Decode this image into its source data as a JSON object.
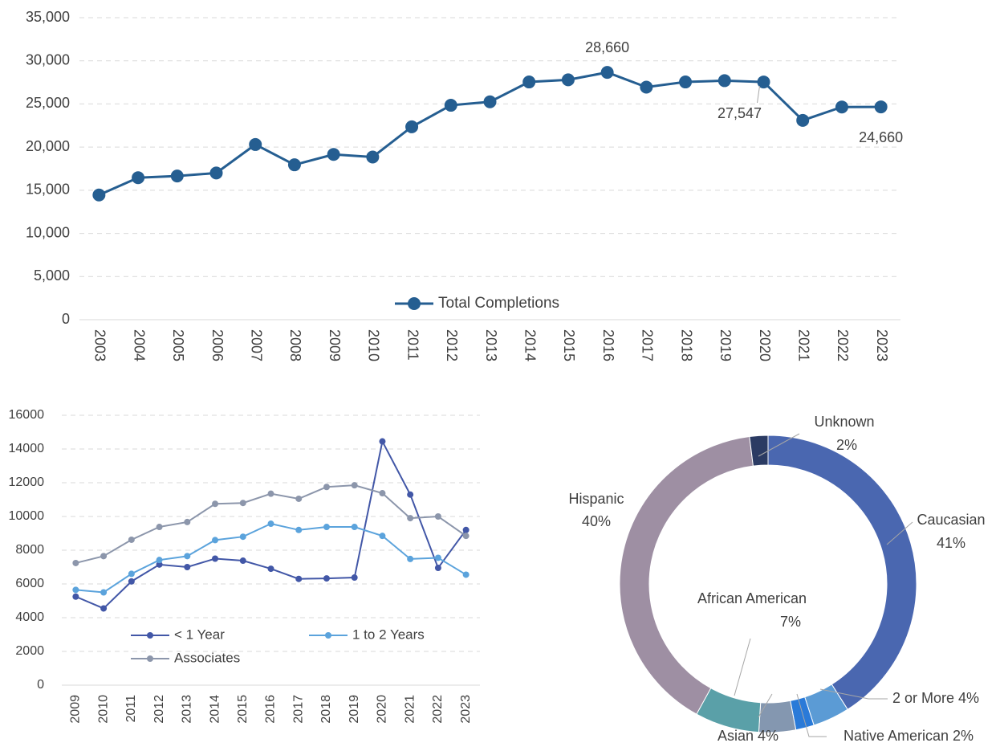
{
  "chart_data": [
    {
      "type": "line",
      "categories": [
        "2003",
        "2004",
        "2005",
        "2006",
        "2007",
        "2008",
        "2009",
        "2010",
        "2011",
        "2012",
        "2013",
        "2014",
        "2015",
        "2016",
        "2017",
        "2018",
        "2019",
        "2020",
        "2021",
        "2022",
        "2023"
      ],
      "series": [
        {
          "name": "Total Completions",
          "color": "#255e91",
          "values": [
            14450,
            16450,
            16650,
            17000,
            20300,
            17950,
            19150,
            18850,
            22350,
            24850,
            25250,
            27550,
            27800,
            28660,
            26950,
            27550,
            27700,
            27547,
            23100,
            24650,
            24660
          ],
          "value_labels": [
            null,
            null,
            null,
            null,
            null,
            null,
            null,
            null,
            null,
            null,
            null,
            null,
            null,
            "28,660",
            null,
            null,
            null,
            "27,547",
            null,
            null,
            "24,660"
          ]
        }
      ],
      "ylim": [
        0,
        35000
      ],
      "yticks": [
        0,
        {
          "value": 5000,
          "label": "5,000"
        },
        {
          "value": 10000,
          "label": "10,000"
        },
        {
          "value": 15000,
          "label": "15,000"
        },
        {
          "value": 20000,
          "label": "20,000"
        },
        {
          "value": 25000,
          "label": "25,000"
        },
        {
          "value": 30000,
          "label": "30,000"
        },
        {
          "value": 35000,
          "label": "35,000"
        }
      ],
      "grid": true,
      "legend": "bottom"
    },
    {
      "type": "line",
      "categories": [
        "2009",
        "2010",
        "2011",
        "2012",
        "2013",
        "2014",
        "2015",
        "2016",
        "2017",
        "2018",
        "2019",
        "2020",
        "2021",
        "2022",
        "2023"
      ],
      "series": [
        {
          "name": "< 1 Year",
          "color": "#4257a7",
          "values": [
            5250,
            4550,
            6150,
            7150,
            7000,
            7500,
            7380,
            6900,
            6300,
            6330,
            6380,
            14450,
            11300,
            6950,
            9200
          ]
        },
        {
          "name": "1 to 2 Years",
          "color": "#5ba3dc",
          "values": [
            5650,
            5500,
            6600,
            7420,
            7650,
            8600,
            8800,
            9570,
            9200,
            9380,
            9380,
            8850,
            7480,
            7550,
            6550
          ]
        },
        {
          "name": "Associates",
          "color": "#8c96ab",
          "values": [
            7240,
            7650,
            8620,
            9380,
            9670,
            10750,
            10800,
            11350,
            11050,
            11750,
            11850,
            11380,
            9900,
            10000,
            8850
          ]
        }
      ],
      "ylim": [
        0,
        16000
      ],
      "yticks": [
        0,
        2000,
        4000,
        6000,
        8000,
        10000,
        12000,
        14000,
        16000
      ],
      "grid": true,
      "legend": "bottom-left"
    },
    {
      "type": "donut",
      "categories": [
        "Caucasian",
        "2 or More",
        "Native American",
        "Asian",
        "African American",
        "Hispanic",
        "Unknown"
      ],
      "values": [
        41,
        4,
        2,
        4,
        7,
        40,
        2
      ],
      "value_labels": [
        "41%",
        "4%",
        "2%",
        "4%",
        "7%",
        "40%",
        "2%"
      ],
      "colors": [
        "#4a67b0",
        "#5b9bd5",
        "#2a7ad8",
        "#8497b0",
        "#5aa0a8",
        "#9e8fa3",
        "#2b3b63"
      ]
    }
  ]
}
